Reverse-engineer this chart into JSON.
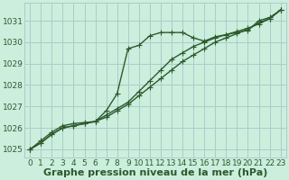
{
  "xlabel": "Graphe pression niveau de la mer (hPa)",
  "ylabel": "",
  "background_color": "#cceedd",
  "grid_color": "#aacccc",
  "line_color": "#2d5a2d",
  "x": [
    0,
    1,
    2,
    3,
    4,
    5,
    6,
    7,
    8,
    9,
    10,
    11,
    12,
    13,
    14,
    15,
    16,
    17,
    18,
    19,
    20,
    21,
    22,
    23
  ],
  "series1": [
    1025.0,
    1025.3,
    1025.7,
    1026.0,
    1026.1,
    1026.2,
    1026.3,
    1026.5,
    1026.8,
    1027.1,
    1027.5,
    1027.9,
    1028.3,
    1028.7,
    1029.1,
    1029.4,
    1029.7,
    1030.0,
    1030.2,
    1030.4,
    1030.6,
    1030.9,
    1031.1,
    1031.5
  ],
  "series2": [
    1025.0,
    1025.3,
    1025.7,
    1026.0,
    1026.1,
    1026.2,
    1026.3,
    1026.6,
    1026.9,
    1027.2,
    1027.7,
    1028.2,
    1028.7,
    1029.2,
    1029.5,
    1029.8,
    1030.0,
    1030.2,
    1030.35,
    1030.5,
    1030.65,
    1030.85,
    1031.1,
    1031.5
  ],
  "series3": [
    1025.0,
    1025.4,
    1025.8,
    1026.1,
    1026.2,
    1026.25,
    1026.3,
    1026.8,
    1027.6,
    1029.7,
    1029.85,
    1030.3,
    1030.45,
    1030.45,
    1030.45,
    1030.2,
    1030.05,
    1030.25,
    1030.35,
    1030.45,
    1030.55,
    1031.0,
    1031.15,
    1031.5
  ],
  "ylim": [
    1024.6,
    1031.85
  ],
  "yticks": [
    1025,
    1026,
    1027,
    1028,
    1029,
    1030,
    1031
  ],
  "xticks": [
    0,
    1,
    2,
    3,
    4,
    5,
    6,
    7,
    8,
    9,
    10,
    11,
    12,
    13,
    14,
    15,
    16,
    17,
    18,
    19,
    20,
    21,
    22,
    23
  ],
  "marker": "+",
  "markersize": 4,
  "linewidth": 1.0,
  "xlabel_fontsize": 8,
  "tick_fontsize": 6.5,
  "xlabel_color": "#2d5a2d",
  "tick_color": "#2d5a2d"
}
